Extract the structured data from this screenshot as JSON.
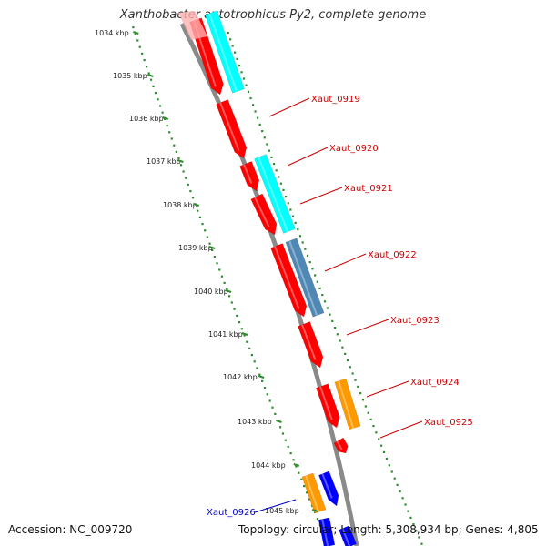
{
  "title": "Xanthobacter autotrophicus Py2, complete genome",
  "footer": {
    "accession": "Accession: NC_009720",
    "summary": "Topology: circular; Length: 5,308,934 bp; Genes: 4,805"
  },
  "colors": {
    "backbone": "#8a8a8a",
    "ruler": "#2e8b2e",
    "red": "#ff0000",
    "cyan": "#00ffff",
    "steel": "#4f87b5",
    "orange": "#ff9900",
    "blue": "#0000ff",
    "label_red": "#cc0000",
    "label_blue": "#0000cc"
  },
  "ruler_labels": [
    "1034 kbp",
    "1035 kbp",
    "1036 kbp",
    "1037 kbp",
    "1038 kbp",
    "1039 kbp",
    "1040 kbp",
    "1041 kbp",
    "1042 kbp",
    "1043 kbp",
    "1044 kbp",
    "1045 kbp"
  ],
  "gene_labels": [
    {
      "name": "Xaut_0919",
      "color": "label_red"
    },
    {
      "name": "Xaut_0920",
      "color": "label_red"
    },
    {
      "name": "Xaut_0921",
      "color": "label_red"
    },
    {
      "name": "Xaut_0922",
      "color": "label_red"
    },
    {
      "name": "Xaut_0923",
      "color": "label_red"
    },
    {
      "name": "Xaut_0924",
      "color": "label_red"
    },
    {
      "name": "Xaut_0925",
      "color": "label_red"
    },
    {
      "name": "Xaut_0926",
      "color": "label_blue"
    }
  ]
}
